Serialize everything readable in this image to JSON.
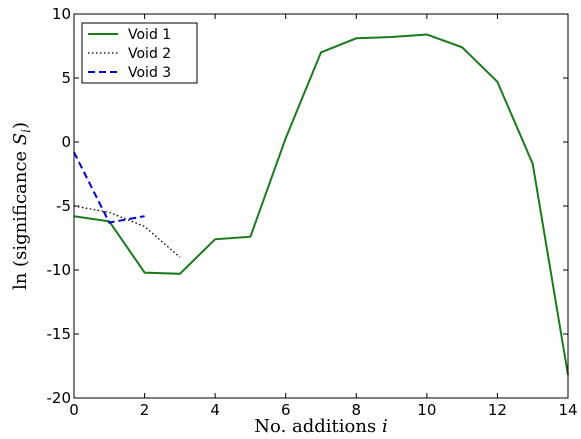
{
  "chart_data": {
    "type": "line",
    "xlabel": "No. additions i",
    "ylabel": "ln (significance S_i)",
    "xlim": [
      0,
      14
    ],
    "ylim": [
      -20,
      10
    ],
    "xticks": [
      "0",
      "2",
      "4",
      "6",
      "8",
      "10",
      "12",
      "14"
    ],
    "yticks": [
      "10",
      "5",
      "0",
      "-5",
      "-10",
      "-15",
      "-20"
    ],
    "legend_position": "top-left",
    "grid": false,
    "series": [
      {
        "name": "Void 1",
        "color": "#1b7a1b",
        "style": "solid",
        "x": [
          0,
          1,
          2,
          3,
          4,
          5,
          6,
          7,
          8,
          9,
          10,
          11,
          12,
          13,
          14
        ],
        "y": [
          -5.8,
          -6.2,
          -10.2,
          -10.3,
          -7.6,
          -7.4,
          0.3,
          7.0,
          8.1,
          8.2,
          8.4,
          7.4,
          4.7,
          -1.7,
          -18.2
        ]
      },
      {
        "name": "Void 2",
        "color": "#000000",
        "style": "dotted",
        "x": [
          0,
          1,
          2,
          3
        ],
        "y": [
          -5.0,
          -5.5,
          -6.6,
          -9.0
        ]
      },
      {
        "name": "Void 3",
        "color": "#0000cc",
        "style": "dashed",
        "x": [
          0,
          1,
          2
        ],
        "y": [
          -0.8,
          -6.3,
          -5.8
        ]
      }
    ]
  }
}
